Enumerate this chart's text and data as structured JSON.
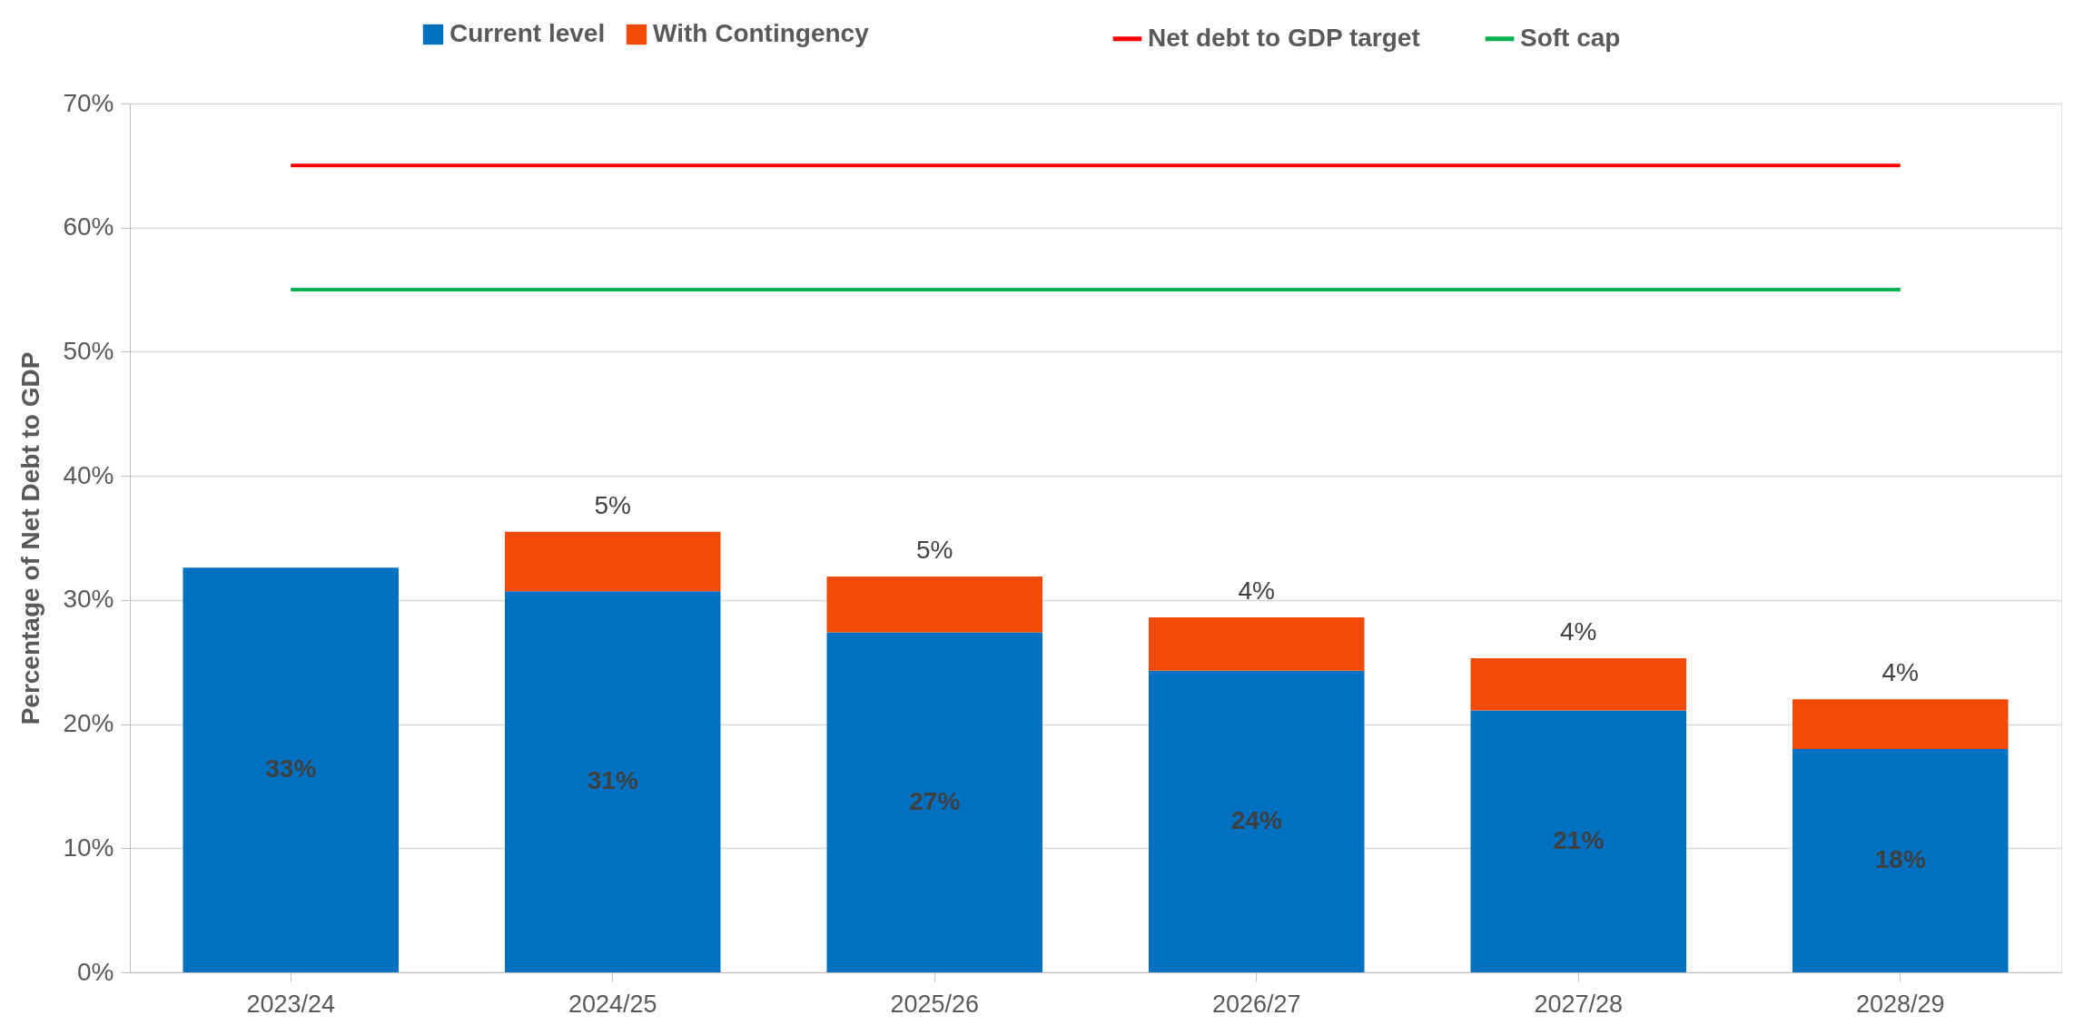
{
  "chart_data": {
    "type": "bar",
    "stacked": true,
    "ylabel": "Percentage of Net Debt to GDP",
    "categories": [
      "2023/24",
      "2024/25",
      "2025/26",
      "2026/27",
      "2027/28",
      "2028/29"
    ],
    "series": [
      {
        "name": "Current level",
        "color": "#0070c0",
        "values": [
          32.6,
          30.7,
          27.4,
          24.3,
          21.1,
          18.0
        ],
        "value_labels": [
          "33%",
          "31%",
          "27%",
          "24%",
          "21%",
          "18%"
        ]
      },
      {
        "name": "With Contingency",
        "color": "#f04a06",
        "values": [
          null,
          4.8,
          4.5,
          4.3,
          4.2,
          4.0
        ],
        "value_labels": [
          null,
          "5%",
          "5%",
          "4%",
          "4%",
          "4%"
        ]
      },
      {
        "name": "Net debt to GDP target",
        "type": "line",
        "color": "#ff0000",
        "values": [
          65,
          65,
          65,
          65,
          65,
          65
        ]
      },
      {
        "name": "Soft cap",
        "type": "line",
        "color": "#00b050",
        "values": [
          55,
          55,
          55,
          55,
          55,
          55
        ]
      }
    ],
    "ylim": [
      0,
      70
    ],
    "yticks": [
      {
        "value": 0,
        "label": "0%"
      },
      {
        "value": 10,
        "label": "10%"
      },
      {
        "value": 20,
        "label": "20%"
      },
      {
        "value": 30,
        "label": "30%"
      },
      {
        "value": 40,
        "label": "40%"
      },
      {
        "value": 50,
        "label": "50%"
      },
      {
        "value": 60,
        "label": "60%"
      },
      {
        "value": 70,
        "label": "70%"
      }
    ],
    "grid": "y",
    "legend": "top"
  }
}
